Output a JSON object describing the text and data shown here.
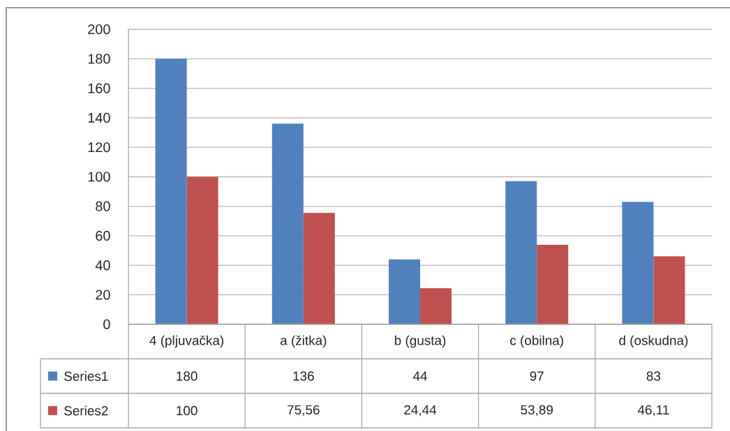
{
  "chart_data": {
    "type": "bar",
    "categories": [
      "4 (pljuvačka)",
      "a  (žitka)",
      "b (gusta)",
      "c (obilna)",
      "d (oskudna)"
    ],
    "series": [
      {
        "name": "Series1",
        "color": "#4f81bd",
        "values": [
          180,
          136,
          44,
          97,
          83
        ],
        "value_labels": [
          "180",
          "136",
          "44",
          "97",
          "83"
        ]
      },
      {
        "name": "Series2",
        "color": "#c0504d",
        "values": [
          100,
          75.56,
          24.44,
          53.89,
          46.11
        ],
        "value_labels": [
          "100",
          "75,56",
          "24,44",
          "53,89",
          "46,11"
        ]
      }
    ],
    "ylim": [
      0,
      200
    ],
    "yticks": [
      0,
      20,
      40,
      60,
      80,
      100,
      120,
      140,
      160,
      180,
      200
    ],
    "grid": "y",
    "legend": "bottom"
  }
}
